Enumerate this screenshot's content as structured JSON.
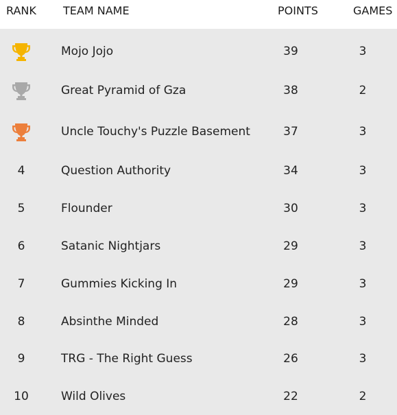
{
  "header": {
    "rank": "RANK",
    "team_name": "TEAM NAME",
    "points": "POINTS",
    "games": "GAMES"
  },
  "colors": {
    "gold": "#f5b400",
    "silver": "#a9a9a9",
    "bronze": "#ec7f3c",
    "row_background": "#e9e9e9"
  },
  "rows": [
    {
      "rank": "1",
      "trophy": "gold-trophy-icon",
      "team": "Mojo Jojo",
      "points": "39",
      "games": "3"
    },
    {
      "rank": "2",
      "trophy": "silver-trophy-icon",
      "team": "Great Pyramid of Gza",
      "points": "38",
      "games": "2"
    },
    {
      "rank": "3",
      "trophy": "bronze-trophy-icon",
      "team": "Uncle Touchy's Puzzle Basement",
      "points": "37",
      "games": "3"
    },
    {
      "rank": "4",
      "team": "Question Authority",
      "points": "34",
      "games": "3"
    },
    {
      "rank": "5",
      "team": "Flounder",
      "points": "30",
      "games": "3"
    },
    {
      "rank": "6",
      "team": "Satanic Nightjars",
      "points": "29",
      "games": "3"
    },
    {
      "rank": "7",
      "team": "Gummies Kicking In",
      "points": "29",
      "games": "3"
    },
    {
      "rank": "8",
      "team": "Absinthe Minded",
      "points": "28",
      "games": "3"
    },
    {
      "rank": "9",
      "team": "TRG - The Right Guess",
      "points": "26",
      "games": "3"
    },
    {
      "rank": "10",
      "team": "Wild Olives",
      "points": "22",
      "games": "2"
    }
  ]
}
